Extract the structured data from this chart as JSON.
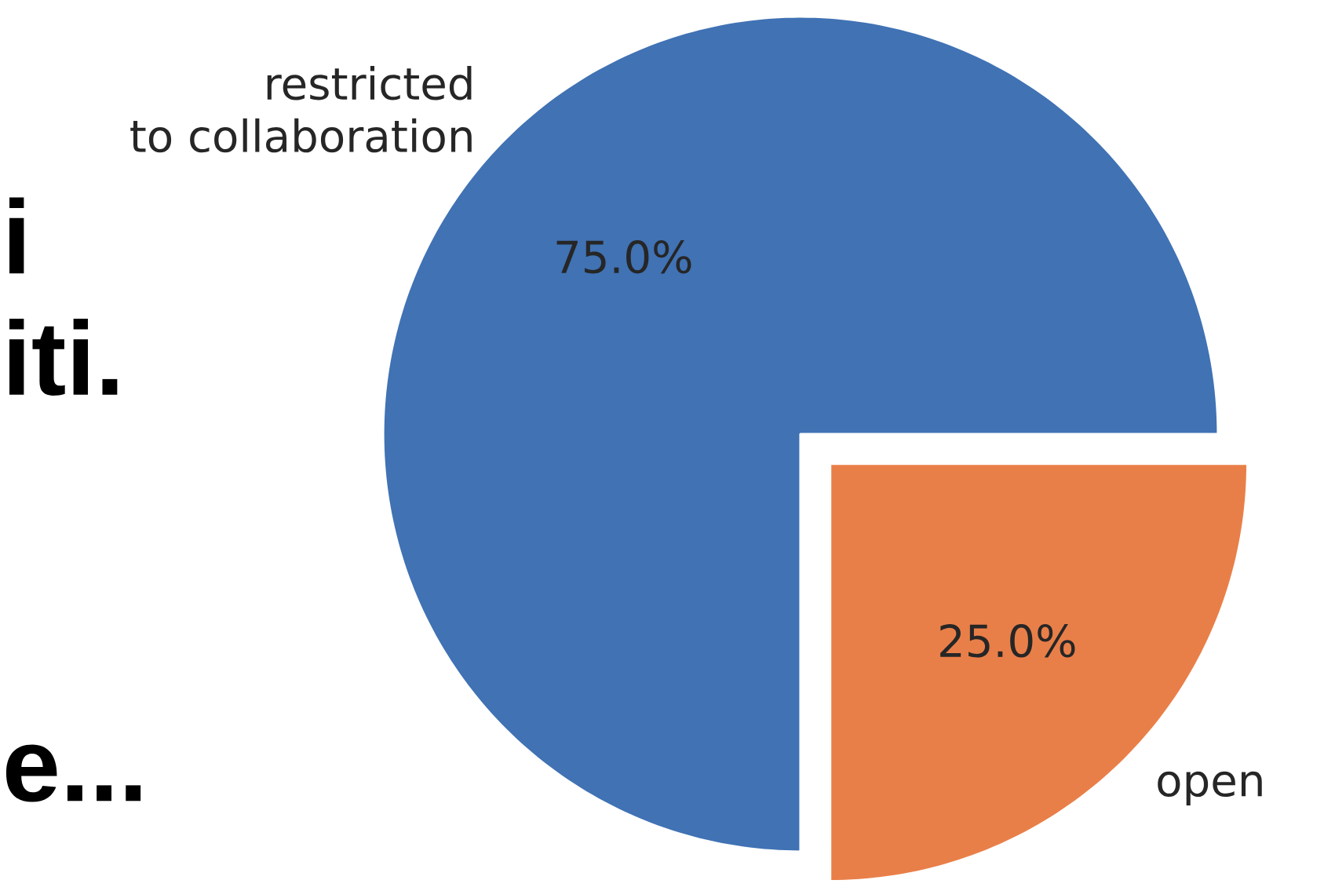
{
  "chart_data": {
    "type": "pie",
    "categories": [
      "restricted\nto collaboration",
      "open"
    ],
    "values": [
      75,
      25
    ],
    "colors": [
      "#4072b4",
      "#e97f48"
    ],
    "value_labels": [
      "75.0%",
      "25.0%"
    ],
    "annotations": [
      "i",
      "iti.",
      "e..."
    ]
  }
}
